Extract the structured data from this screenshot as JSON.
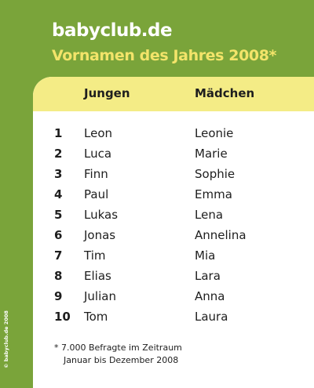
{
  "header": {
    "brand": "babyclub.de",
    "headline": "Vornamen des Jahres 2008*"
  },
  "side_note": "© babyclub.de 2008",
  "table": {
    "col_boys": "Jungen",
    "col_girls": "Mädchen",
    "rows": [
      {
        "rank": "1",
        "boy": "Leon",
        "girl": "Leonie"
      },
      {
        "rank": "2",
        "boy": "Luca",
        "girl": "Marie"
      },
      {
        "rank": "3",
        "boy": "Finn",
        "girl": "Sophie"
      },
      {
        "rank": "4",
        "boy": "Paul",
        "girl": "Emma"
      },
      {
        "rank": "5",
        "boy": "Lukas",
        "girl": "Lena"
      },
      {
        "rank": "6",
        "boy": "Jonas",
        "girl": "Annelina"
      },
      {
        "rank": "7",
        "boy": "Tim",
        "girl": "Mia"
      },
      {
        "rank": "8",
        "boy": "Elias",
        "girl": "Lara"
      },
      {
        "rank": "9",
        "boy": "Julian",
        "girl": "Anna"
      },
      {
        "rank": "10",
        "boy": "Tom",
        "girl": "Laura"
      }
    ]
  },
  "footnote": {
    "line1": "* 7.000 Befragte im Zeitraum",
    "line2": "Januar bis Dezember 2008"
  },
  "colors": {
    "background": "#7aa43a",
    "headline": "#f3e46a",
    "header_band": "#f4ec86"
  }
}
